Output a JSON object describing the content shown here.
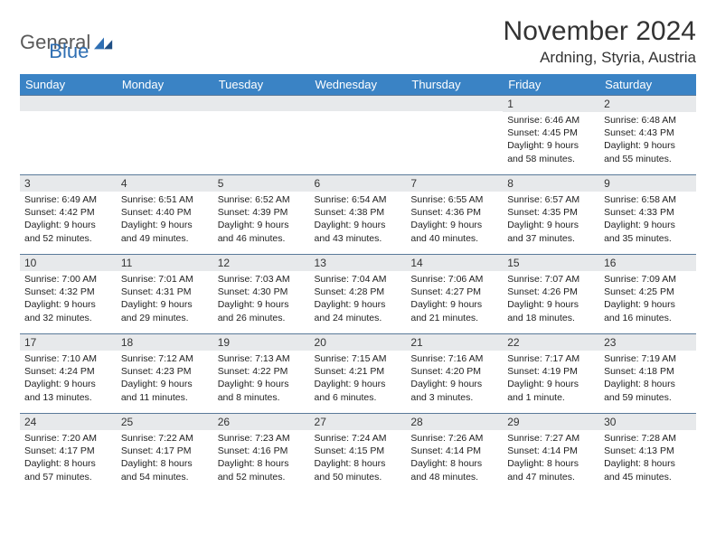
{
  "logo": {
    "text1": "General",
    "text2": "Blue"
  },
  "header": {
    "month_title": "November 2024",
    "location": "Ardning, Styria, Austria"
  },
  "colors": {
    "header_bg": "#3a83c5",
    "header_text": "#ffffff",
    "daynum_bg": "#e7e9eb",
    "daynum_border": "#5a7a9a",
    "body_text": "#222222",
    "logo_gray": "#5a5a5a",
    "logo_blue": "#2f6fb3"
  },
  "columns": [
    "Sunday",
    "Monday",
    "Tuesday",
    "Wednesday",
    "Thursday",
    "Friday",
    "Saturday"
  ],
  "weeks": [
    [
      {
        "n": "",
        "sr": "",
        "ss": "",
        "dl": ""
      },
      {
        "n": "",
        "sr": "",
        "ss": "",
        "dl": ""
      },
      {
        "n": "",
        "sr": "",
        "ss": "",
        "dl": ""
      },
      {
        "n": "",
        "sr": "",
        "ss": "",
        "dl": ""
      },
      {
        "n": "",
        "sr": "",
        "ss": "",
        "dl": ""
      },
      {
        "n": "1",
        "sr": "Sunrise: 6:46 AM",
        "ss": "Sunset: 4:45 PM",
        "dl": "Daylight: 9 hours and 58 minutes."
      },
      {
        "n": "2",
        "sr": "Sunrise: 6:48 AM",
        "ss": "Sunset: 4:43 PM",
        "dl": "Daylight: 9 hours and 55 minutes."
      }
    ],
    [
      {
        "n": "3",
        "sr": "Sunrise: 6:49 AM",
        "ss": "Sunset: 4:42 PM",
        "dl": "Daylight: 9 hours and 52 minutes."
      },
      {
        "n": "4",
        "sr": "Sunrise: 6:51 AM",
        "ss": "Sunset: 4:40 PM",
        "dl": "Daylight: 9 hours and 49 minutes."
      },
      {
        "n": "5",
        "sr": "Sunrise: 6:52 AM",
        "ss": "Sunset: 4:39 PM",
        "dl": "Daylight: 9 hours and 46 minutes."
      },
      {
        "n": "6",
        "sr": "Sunrise: 6:54 AM",
        "ss": "Sunset: 4:38 PM",
        "dl": "Daylight: 9 hours and 43 minutes."
      },
      {
        "n": "7",
        "sr": "Sunrise: 6:55 AM",
        "ss": "Sunset: 4:36 PM",
        "dl": "Daylight: 9 hours and 40 minutes."
      },
      {
        "n": "8",
        "sr": "Sunrise: 6:57 AM",
        "ss": "Sunset: 4:35 PM",
        "dl": "Daylight: 9 hours and 37 minutes."
      },
      {
        "n": "9",
        "sr": "Sunrise: 6:58 AM",
        "ss": "Sunset: 4:33 PM",
        "dl": "Daylight: 9 hours and 35 minutes."
      }
    ],
    [
      {
        "n": "10",
        "sr": "Sunrise: 7:00 AM",
        "ss": "Sunset: 4:32 PM",
        "dl": "Daylight: 9 hours and 32 minutes."
      },
      {
        "n": "11",
        "sr": "Sunrise: 7:01 AM",
        "ss": "Sunset: 4:31 PM",
        "dl": "Daylight: 9 hours and 29 minutes."
      },
      {
        "n": "12",
        "sr": "Sunrise: 7:03 AM",
        "ss": "Sunset: 4:30 PM",
        "dl": "Daylight: 9 hours and 26 minutes."
      },
      {
        "n": "13",
        "sr": "Sunrise: 7:04 AM",
        "ss": "Sunset: 4:28 PM",
        "dl": "Daylight: 9 hours and 24 minutes."
      },
      {
        "n": "14",
        "sr": "Sunrise: 7:06 AM",
        "ss": "Sunset: 4:27 PM",
        "dl": "Daylight: 9 hours and 21 minutes."
      },
      {
        "n": "15",
        "sr": "Sunrise: 7:07 AM",
        "ss": "Sunset: 4:26 PM",
        "dl": "Daylight: 9 hours and 18 minutes."
      },
      {
        "n": "16",
        "sr": "Sunrise: 7:09 AM",
        "ss": "Sunset: 4:25 PM",
        "dl": "Daylight: 9 hours and 16 minutes."
      }
    ],
    [
      {
        "n": "17",
        "sr": "Sunrise: 7:10 AM",
        "ss": "Sunset: 4:24 PM",
        "dl": "Daylight: 9 hours and 13 minutes."
      },
      {
        "n": "18",
        "sr": "Sunrise: 7:12 AM",
        "ss": "Sunset: 4:23 PM",
        "dl": "Daylight: 9 hours and 11 minutes."
      },
      {
        "n": "19",
        "sr": "Sunrise: 7:13 AM",
        "ss": "Sunset: 4:22 PM",
        "dl": "Daylight: 9 hours and 8 minutes."
      },
      {
        "n": "20",
        "sr": "Sunrise: 7:15 AM",
        "ss": "Sunset: 4:21 PM",
        "dl": "Daylight: 9 hours and 6 minutes."
      },
      {
        "n": "21",
        "sr": "Sunrise: 7:16 AM",
        "ss": "Sunset: 4:20 PM",
        "dl": "Daylight: 9 hours and 3 minutes."
      },
      {
        "n": "22",
        "sr": "Sunrise: 7:17 AM",
        "ss": "Sunset: 4:19 PM",
        "dl": "Daylight: 9 hours and 1 minute."
      },
      {
        "n": "23",
        "sr": "Sunrise: 7:19 AM",
        "ss": "Sunset: 4:18 PM",
        "dl": "Daylight: 8 hours and 59 minutes."
      }
    ],
    [
      {
        "n": "24",
        "sr": "Sunrise: 7:20 AM",
        "ss": "Sunset: 4:17 PM",
        "dl": "Daylight: 8 hours and 57 minutes."
      },
      {
        "n": "25",
        "sr": "Sunrise: 7:22 AM",
        "ss": "Sunset: 4:17 PM",
        "dl": "Daylight: 8 hours and 54 minutes."
      },
      {
        "n": "26",
        "sr": "Sunrise: 7:23 AM",
        "ss": "Sunset: 4:16 PM",
        "dl": "Daylight: 8 hours and 52 minutes."
      },
      {
        "n": "27",
        "sr": "Sunrise: 7:24 AM",
        "ss": "Sunset: 4:15 PM",
        "dl": "Daylight: 8 hours and 50 minutes."
      },
      {
        "n": "28",
        "sr": "Sunrise: 7:26 AM",
        "ss": "Sunset: 4:14 PM",
        "dl": "Daylight: 8 hours and 48 minutes."
      },
      {
        "n": "29",
        "sr": "Sunrise: 7:27 AM",
        "ss": "Sunset: 4:14 PM",
        "dl": "Daylight: 8 hours and 47 minutes."
      },
      {
        "n": "30",
        "sr": "Sunrise: 7:28 AM",
        "ss": "Sunset: 4:13 PM",
        "dl": "Daylight: 8 hours and 45 minutes."
      }
    ]
  ]
}
